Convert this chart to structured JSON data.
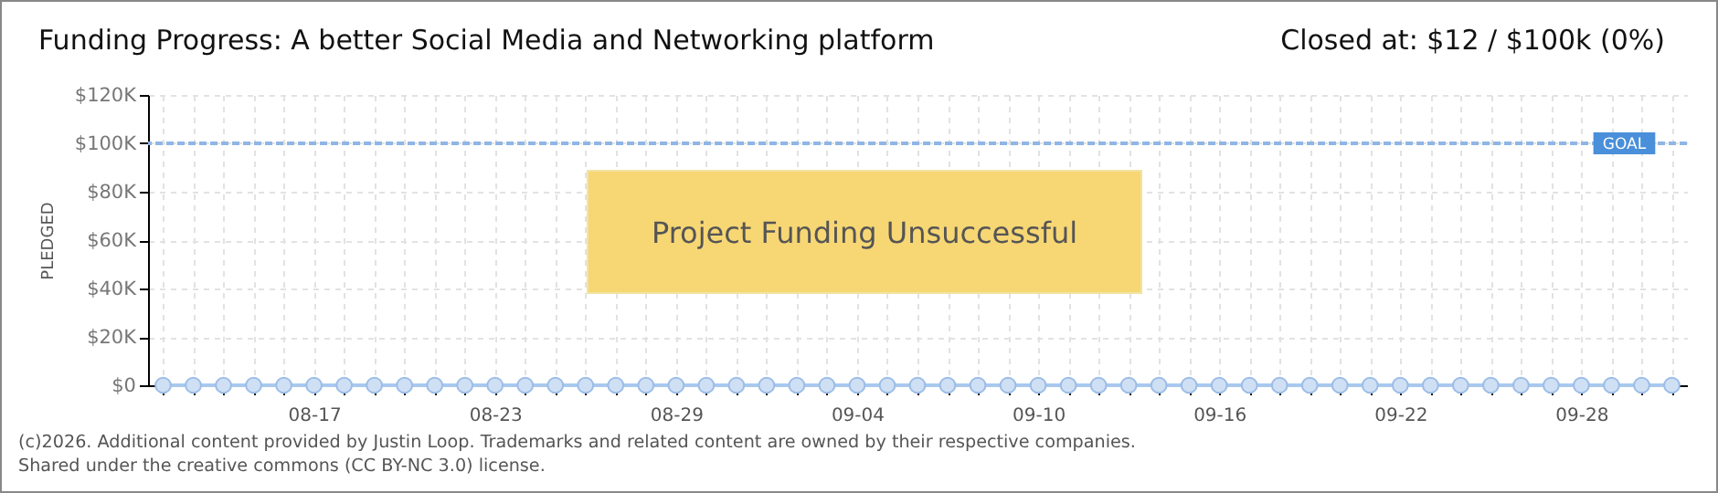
{
  "chart_data": {
    "type": "line",
    "title": "Funding Progress: A better Social Media and Networking platform",
    "subtitle": "Closed at: $12 / $100k (0%)",
    "ylabel": "PLEDGED",
    "categories": [
      null,
      null,
      null,
      null,
      null,
      "08-17",
      null,
      null,
      null,
      null,
      null,
      "08-23",
      null,
      null,
      null,
      null,
      null,
      "08-29",
      null,
      null,
      null,
      null,
      null,
      "09-04",
      null,
      null,
      null,
      null,
      null,
      "09-10",
      null,
      null,
      null,
      null,
      null,
      "09-16",
      null,
      null,
      null,
      null,
      null,
      "09-22",
      null,
      null,
      null,
      null,
      null,
      "09-28",
      null,
      null,
      null
    ],
    "series": [
      {
        "color": "#a9c8ee",
        "values": [
          0,
          0,
          0,
          0,
          0,
          0,
          0,
          0,
          0,
          0,
          0,
          0,
          0,
          0,
          0,
          0,
          0,
          0,
          0,
          0,
          0,
          0,
          0,
          0,
          0,
          0,
          0,
          0,
          0,
          0,
          0,
          0,
          0,
          0,
          0,
          0,
          0,
          0,
          0,
          0,
          0,
          0,
          0,
          0,
          0,
          0,
          0,
          0,
          0,
          0,
          0
        ]
      }
    ],
    "ylim": [
      0,
      120000
    ],
    "yticks": [
      {
        "value": 0,
        "label": "$0"
      },
      {
        "value": 20000,
        "label": "$20K"
      },
      {
        "value": 40000,
        "label": "$40K"
      },
      {
        "value": 60000,
        "label": "$60K"
      },
      {
        "value": 80000,
        "label": "$80K"
      },
      {
        "value": 100000,
        "label": "$100K"
      },
      {
        "value": 120000,
        "label": "$120K"
      }
    ],
    "ref_lines": [
      {
        "axis": "y",
        "value": 100000,
        "label": "GOAL",
        "color": "#8fb6e6",
        "line_style": "dashed"
      }
    ],
    "annotations": [
      "Project Funding Unsuccessful",
      "(c)2026. Additional content provided by Justin Loop. Trademarks and related content are owned by their respective companies.",
      "Shared under the creative commons (CC BY-NC 3.0) license."
    ],
    "grid": true,
    "marker": "circle",
    "line_style": "solid"
  }
}
